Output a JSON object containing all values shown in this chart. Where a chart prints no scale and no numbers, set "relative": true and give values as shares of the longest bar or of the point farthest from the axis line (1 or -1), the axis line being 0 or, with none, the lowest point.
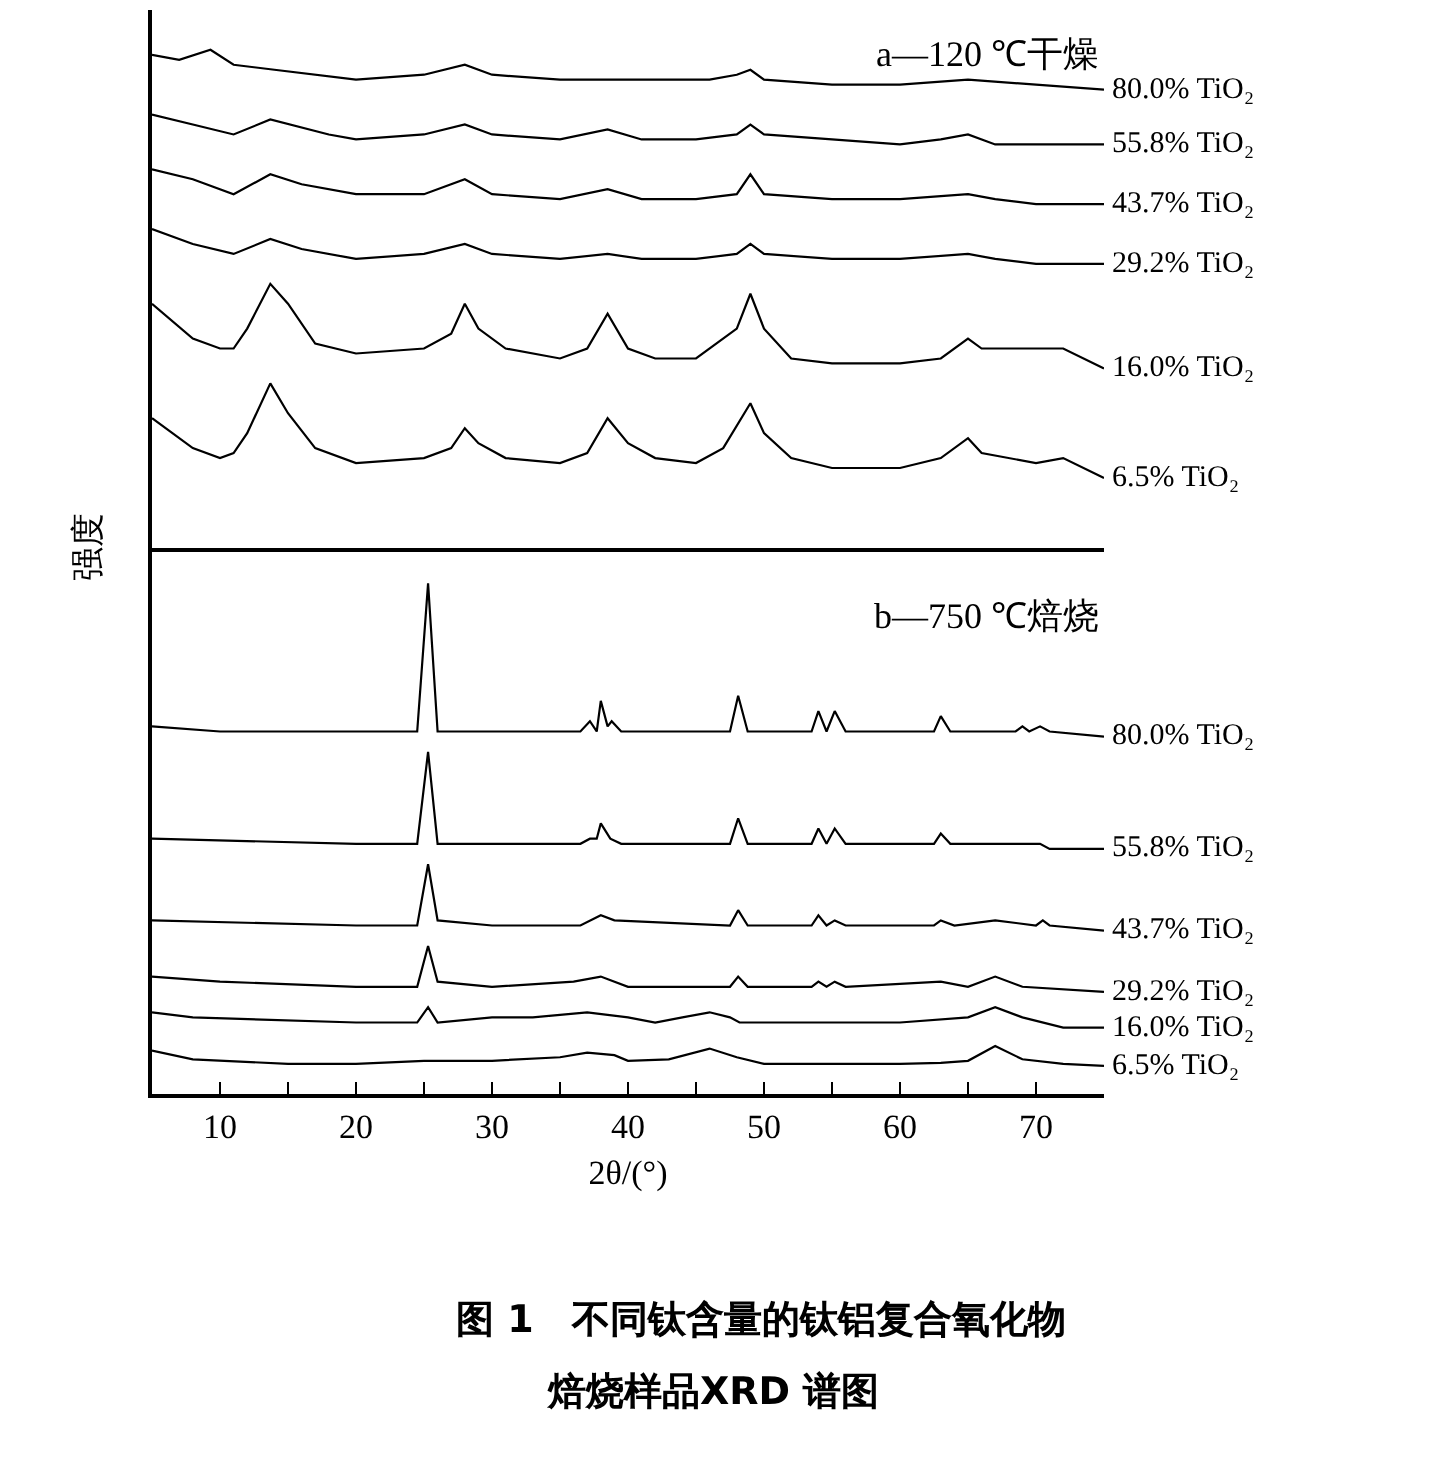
{
  "chart_data": [
    {
      "type": "line",
      "title": "a—120 ℃干燥",
      "ylabel": "强度",
      "relative": true,
      "xlim": [
        5,
        75
      ],
      "tick_labels": false,
      "grid": false,
      "series": [
        {
          "name": "80.0% TiO₂",
          "color": "#000000",
          "x": [
            5,
            7,
            9.3,
            11,
            14,
            20,
            25,
            28,
            30,
            35,
            38.5,
            42,
            46,
            48,
            49,
            50,
            55,
            60,
            65,
            70,
            75
          ],
          "values": [
            0.99,
            0.98,
            1.0,
            0.97,
            0.96,
            0.94,
            0.95,
            0.97,
            0.95,
            0.94,
            0.94,
            0.94,
            0.94,
            0.95,
            0.96,
            0.94,
            0.93,
            0.93,
            0.94,
            0.93,
            0.92
          ]
        },
        {
          "name": "55.8% TiO₂",
          "color": "#000000",
          "x": [
            5,
            8,
            11,
            13.7,
            18,
            20,
            25,
            28,
            30,
            35,
            38.5,
            41,
            45,
            48,
            49,
            50,
            55,
            60,
            63,
            65,
            67,
            70,
            75
          ],
          "values": [
            0.87,
            0.85,
            0.83,
            0.86,
            0.83,
            0.82,
            0.83,
            0.85,
            0.83,
            0.82,
            0.84,
            0.82,
            0.82,
            0.83,
            0.85,
            0.83,
            0.82,
            0.81,
            0.82,
            0.83,
            0.81,
            0.81,
            0.81
          ]
        },
        {
          "name": "43.7% TiO₂",
          "color": "#000000",
          "x": [
            5,
            8,
            11,
            13.7,
            16,
            20,
            25,
            28,
            30,
            35,
            38.5,
            41,
            45,
            48,
            49,
            50,
            55,
            60,
            65,
            67,
            70,
            75
          ],
          "values": [
            0.76,
            0.74,
            0.71,
            0.75,
            0.73,
            0.71,
            0.71,
            0.74,
            0.71,
            0.7,
            0.72,
            0.7,
            0.7,
            0.71,
            0.75,
            0.71,
            0.7,
            0.7,
            0.71,
            0.7,
            0.69,
            0.69
          ]
        },
        {
          "name": "29.2% TiO₂",
          "color": "#000000",
          "x": [
            5,
            8,
            11,
            13.7,
            16,
            20,
            25,
            28,
            30,
            35,
            38.5,
            41,
            45,
            48,
            49,
            50,
            55,
            60,
            65,
            67,
            70,
            75
          ],
          "values": [
            0.64,
            0.61,
            0.59,
            0.62,
            0.6,
            0.58,
            0.59,
            0.61,
            0.59,
            0.58,
            0.59,
            0.58,
            0.58,
            0.59,
            0.61,
            0.59,
            0.58,
            0.58,
            0.59,
            0.58,
            0.57,
            0.57
          ]
        },
        {
          "name": "16.0% TiO₂",
          "color": "#000000",
          "x": [
            5,
            8,
            10,
            11,
            12,
            13.7,
            15,
            17,
            20,
            25,
            27,
            28,
            29,
            31,
            35,
            37,
            38.5,
            40,
            42,
            45,
            48,
            49,
            50,
            52,
            55,
            60,
            63,
            65,
            66,
            70,
            72,
            75
          ],
          "values": [
            0.49,
            0.42,
            0.4,
            0.4,
            0.44,
            0.53,
            0.49,
            0.41,
            0.39,
            0.4,
            0.43,
            0.49,
            0.44,
            0.4,
            0.38,
            0.4,
            0.47,
            0.4,
            0.38,
            0.38,
            0.44,
            0.51,
            0.44,
            0.38,
            0.37,
            0.37,
            0.38,
            0.42,
            0.4,
            0.4,
            0.4,
            0.36
          ]
        },
        {
          "name": "6.5% TiO₂",
          "color": "#000000",
          "x": [
            5,
            8,
            10,
            11,
            12,
            13.7,
            15,
            17,
            20,
            25,
            27,
            28,
            29,
            31,
            35,
            37,
            38.5,
            40,
            42,
            45,
            47,
            49,
            50,
            52,
            55,
            60,
            63,
            65,
            66,
            70,
            72,
            75
          ],
          "values": [
            0.26,
            0.2,
            0.18,
            0.19,
            0.23,
            0.33,
            0.27,
            0.2,
            0.17,
            0.18,
            0.2,
            0.24,
            0.21,
            0.18,
            0.17,
            0.19,
            0.26,
            0.21,
            0.18,
            0.17,
            0.2,
            0.29,
            0.23,
            0.18,
            0.16,
            0.16,
            0.18,
            0.22,
            0.19,
            0.17,
            0.18,
            0.14
          ]
        }
      ]
    },
    {
      "type": "line",
      "title": "b—750 ℃焙烧",
      "xlabel": "2θ/(°)",
      "relative": true,
      "xlim": [
        5,
        75
      ],
      "tick_labels": "x",
      "grid": false,
      "xticks": [
        10,
        {
          "value": 15,
          "label": null
        },
        20,
        {
          "value": 25,
          "label": null
        },
        30,
        {
          "value": 35,
          "label": null
        },
        40,
        {
          "value": 45,
          "label": null
        },
        50,
        {
          "value": 55,
          "label": null
        },
        60,
        {
          "value": 65,
          "label": null
        },
        70
      ],
      "annotations": [
        "图 1　不同钛含量的钛铝复合氧化物",
        "焙烧样品XRD 谱图"
      ],
      "series": [
        {
          "name": "80.0% TiO₂",
          "color": "#000000",
          "x": [
            5,
            10,
            20,
            24.5,
            25.3,
            26,
            30,
            36.5,
            37.2,
            37.7,
            38,
            38.5,
            38.8,
            39.5,
            47.5,
            48.1,
            48.8,
            53.5,
            54,
            54.6,
            55.2,
            56,
            62.5,
            63,
            63.7,
            68.5,
            69,
            69.5,
            70.3,
            71,
            75
          ],
          "values": [
            0.72,
            0.71,
            0.71,
            0.71,
            1.0,
            0.71,
            0.71,
            0.71,
            0.73,
            0.71,
            0.77,
            0.72,
            0.73,
            0.71,
            0.71,
            0.78,
            0.71,
            0.71,
            0.75,
            0.71,
            0.75,
            0.71,
            0.71,
            0.74,
            0.71,
            0.71,
            0.72,
            0.71,
            0.72,
            0.71,
            0.7
          ]
        },
        {
          "name": "55.8% TiO₂",
          "color": "#000000",
          "x": [
            5,
            20,
            24.5,
            25.3,
            26,
            30,
            36.5,
            37.2,
            37.7,
            38,
            38.7,
            39.5,
            47.5,
            48.1,
            48.8,
            53.5,
            54,
            54.6,
            55.2,
            56,
            62.5,
            63,
            63.7,
            68.5,
            69,
            69.5,
            70.3,
            71,
            75
          ],
          "values": [
            0.5,
            0.49,
            0.49,
            0.67,
            0.49,
            0.49,
            0.49,
            0.5,
            0.5,
            0.53,
            0.5,
            0.49,
            0.49,
            0.54,
            0.49,
            0.49,
            0.52,
            0.49,
            0.52,
            0.49,
            0.49,
            0.51,
            0.49,
            0.49,
            0.49,
            0.49,
            0.49,
            0.48,
            0.48
          ]
        },
        {
          "name": "43.7% TiO₂",
          "color": "#000000",
          "x": [
            5,
            20,
            24.5,
            25.3,
            26,
            30,
            36.5,
            38,
            39,
            47.5,
            48.1,
            48.8,
            53.5,
            54,
            54.6,
            55.2,
            56,
            62.5,
            63,
            64,
            67,
            70,
            70.5,
            71,
            75
          ],
          "values": [
            0.34,
            0.33,
            0.33,
            0.45,
            0.34,
            0.33,
            0.33,
            0.35,
            0.34,
            0.33,
            0.36,
            0.33,
            0.33,
            0.35,
            0.33,
            0.34,
            0.33,
            0.33,
            0.34,
            0.33,
            0.34,
            0.33,
            0.34,
            0.33,
            0.32
          ]
        },
        {
          "name": "29.2% TiO₂",
          "color": "#000000",
          "x": [
            5,
            10,
            20,
            24.5,
            25.3,
            26,
            30,
            36,
            38,
            40,
            45,
            47.5,
            48.1,
            48.8,
            53.5,
            54,
            54.6,
            55.2,
            56,
            63,
            65,
            67,
            69,
            75
          ],
          "values": [
            0.23,
            0.22,
            0.21,
            0.21,
            0.29,
            0.22,
            0.21,
            0.22,
            0.23,
            0.21,
            0.21,
            0.21,
            0.23,
            0.21,
            0.21,
            0.22,
            0.21,
            0.22,
            0.21,
            0.22,
            0.21,
            0.23,
            0.21,
            0.2
          ]
        },
        {
          "name": "16.0% TiO₂",
          "color": "#000000",
          "x": [
            5,
            8,
            20,
            24.5,
            25.3,
            26,
            30,
            33,
            37,
            40,
            42,
            44,
            46,
            47.5,
            48.2,
            50,
            55,
            60,
            65,
            67,
            69,
            72,
            75
          ],
          "values": [
            0.16,
            0.15,
            0.14,
            0.14,
            0.17,
            0.14,
            0.15,
            0.15,
            0.16,
            0.15,
            0.14,
            0.15,
            0.16,
            0.15,
            0.14,
            0.14,
            0.14,
            0.14,
            0.15,
            0.17,
            0.15,
            0.13,
            0.13
          ]
        },
        {
          "name": "6.5% TiO₂",
          "color": "#000000",
          "x": [
            5,
            8,
            15,
            20,
            25,
            30,
            35,
            37,
            39,
            40,
            43,
            46,
            48,
            50,
            55,
            60,
            63,
            65,
            67,
            69,
            72,
            75
          ],
          "values": [
            0.085,
            0.068,
            0.059,
            0.059,
            0.065,
            0.065,
            0.072,
            0.081,
            0.076,
            0.065,
            0.068,
            0.089,
            0.072,
            0.059,
            0.059,
            0.059,
            0.061,
            0.065,
            0.094,
            0.068,
            0.059,
            0.055
          ]
        }
      ]
    }
  ]
}
